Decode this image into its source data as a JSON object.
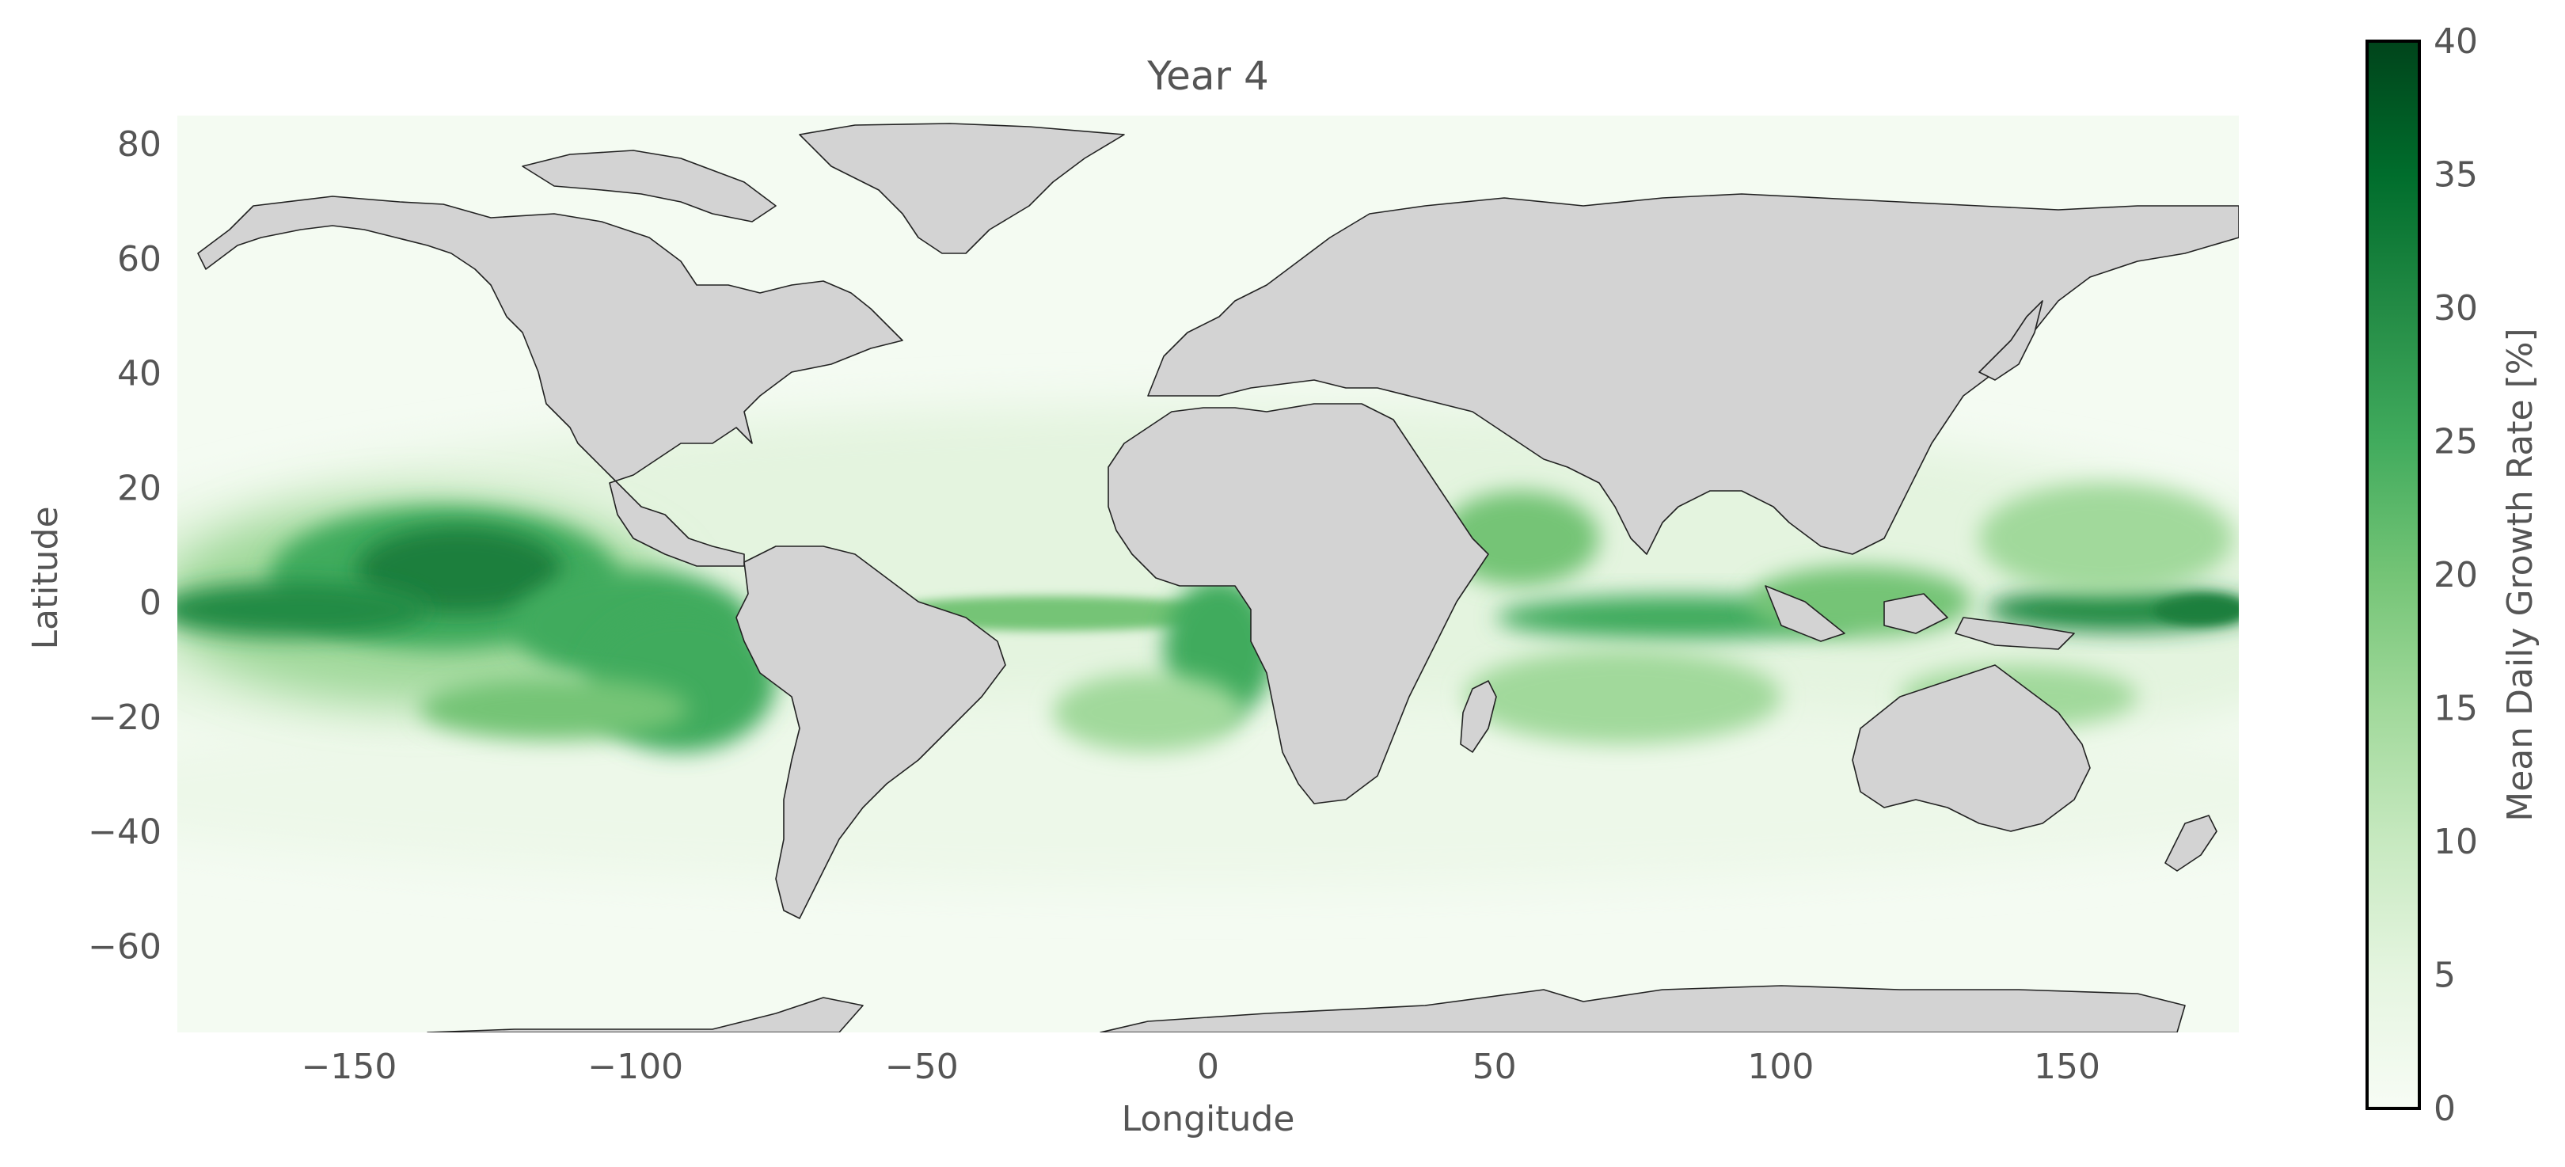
{
  "title": "Year 4",
  "map": {
    "xlabel": "Longitude",
    "ylabel": "Latitude",
    "lon_range": [
      -180,
      180
    ],
    "lat_range": [
      -75,
      85
    ],
    "lon_ticks": [
      -150,
      -100,
      -50,
      0,
      50,
      100,
      150
    ],
    "lat_ticks": [
      -60,
      -40,
      -20,
      0,
      20,
      40,
      60,
      80
    ],
    "land_color": "#d3d3d3",
    "coast_color": "#222222",
    "ocean_background": "#f4fbf2",
    "field_description": "Mean daily growth rate concentrated along equatorial Pacific (strongest east/central Pacific near 0 to 5N, extending to South American coast), equatorial Atlantic band, Arabian Sea, equatorial Indian Ocean and western Pacific warm pool; low values at higher latitudes."
  },
  "colorbar": {
    "label": "Mean Daily Growth Rate [%]",
    "cmap": "Greens",
    "min": 0,
    "max": 40,
    "ticks": [
      0,
      5,
      10,
      15,
      20,
      25,
      30,
      35,
      40
    ],
    "tick_labels": [
      "0",
      "5",
      "10",
      "15",
      "20",
      "25",
      "30",
      "35",
      "40"
    ],
    "low_color": "#f7fcf5",
    "high_color": "#00441b"
  }
}
